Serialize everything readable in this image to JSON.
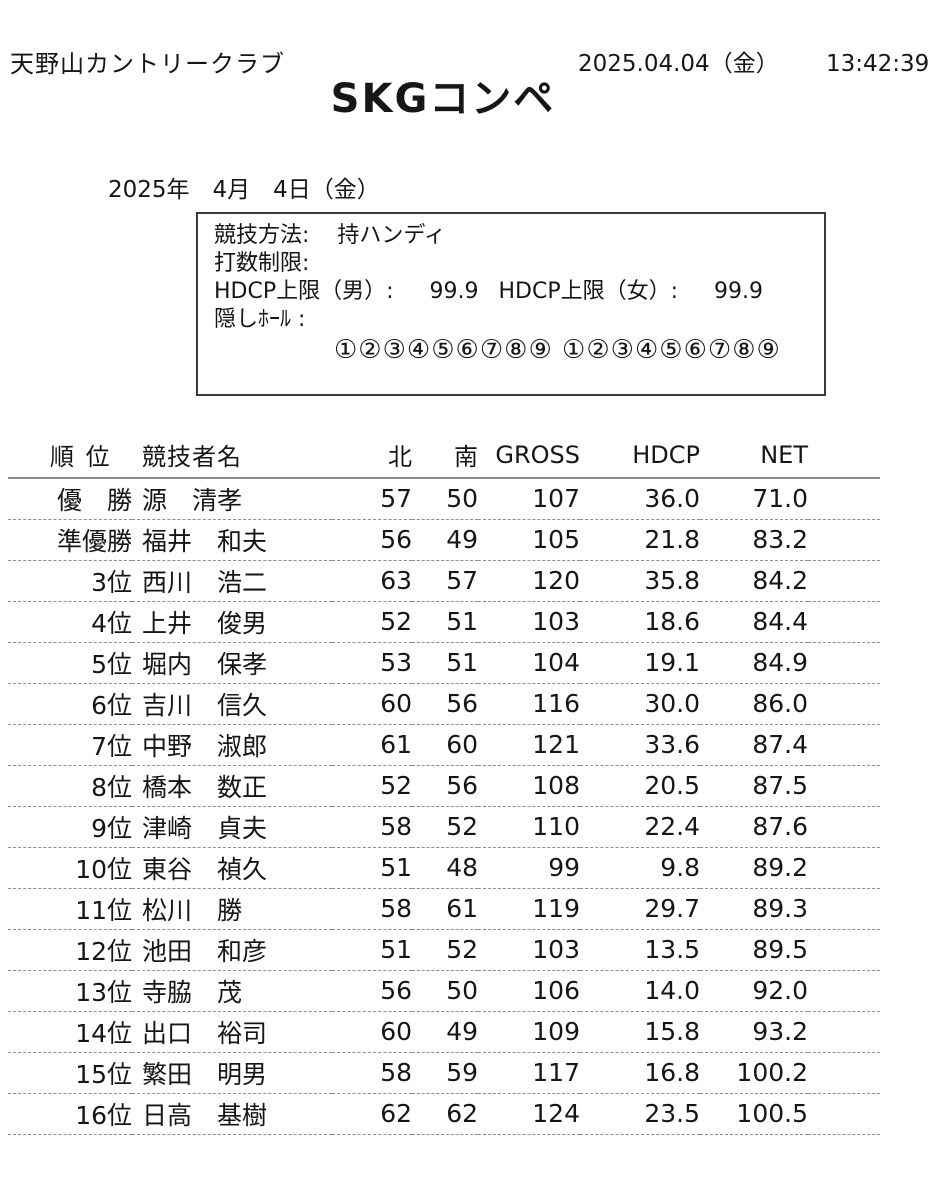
{
  "header": {
    "club_name": "天野山カントリークラブ",
    "print_date": "2025.04.04（金）",
    "print_time": "13:42:39",
    "title": "SKGコンペ",
    "event_date": "2025年　4月　4日（金）"
  },
  "info_box": {
    "method_label": "競技方法:",
    "method_value": "持ハンディ",
    "stroke_limit_label": "打数制限:",
    "hdcp_limit_men_label": "HDCP上限（男）:",
    "hdcp_limit_men_value": "99.9",
    "hdcp_limit_women_label": "HDCP上限（女）:",
    "hdcp_limit_women_value": "99.9",
    "hidden_hole_label": "隠しﾎｰﾙ :",
    "hidden_holes": "①②③④⑤⑥⑦⑧⑨ ①②③④⑤⑥⑦⑧⑨"
  },
  "table": {
    "headers": {
      "rank": "順 位",
      "player": "競技者名",
      "north": "北",
      "south": "南",
      "gross": "GROSS",
      "hdcp": "HDCP",
      "net": "NET"
    },
    "rows": [
      {
        "rank": "優　勝",
        "player": "源　清孝",
        "north": "57",
        "south": "50",
        "gross": "107",
        "hdcp": "36.0",
        "net": "71.0"
      },
      {
        "rank": "準優勝",
        "player": "福井　和夫",
        "north": "56",
        "south": "49",
        "gross": "105",
        "hdcp": "21.8",
        "net": "83.2"
      },
      {
        "rank": "3位",
        "player": "西川　浩二",
        "north": "63",
        "south": "57",
        "gross": "120",
        "hdcp": "35.8",
        "net": "84.2"
      },
      {
        "rank": "4位",
        "player": "上井　俊男",
        "north": "52",
        "south": "51",
        "gross": "103",
        "hdcp": "18.6",
        "net": "84.4"
      },
      {
        "rank": "5位",
        "player": "堀内　保孝",
        "north": "53",
        "south": "51",
        "gross": "104",
        "hdcp": "19.1",
        "net": "84.9"
      },
      {
        "rank": "6位",
        "player": "吉川　信久",
        "north": "60",
        "south": "56",
        "gross": "116",
        "hdcp": "30.0",
        "net": "86.0"
      },
      {
        "rank": "7位",
        "player": "中野　淑郎",
        "north": "61",
        "south": "60",
        "gross": "121",
        "hdcp": "33.6",
        "net": "87.4"
      },
      {
        "rank": "8位",
        "player": "橋本　数正",
        "north": "52",
        "south": "56",
        "gross": "108",
        "hdcp": "20.5",
        "net": "87.5"
      },
      {
        "rank": "9位",
        "player": "津崎　貞夫",
        "north": "58",
        "south": "52",
        "gross": "110",
        "hdcp": "22.4",
        "net": "87.6"
      },
      {
        "rank": "10位",
        "player": "東谷　禎久",
        "north": "51",
        "south": "48",
        "gross": "99",
        "hdcp": "9.8",
        "net": "89.2"
      },
      {
        "rank": "11位",
        "player": "松川　勝",
        "north": "58",
        "south": "61",
        "gross": "119",
        "hdcp": "29.7",
        "net": "89.3"
      },
      {
        "rank": "12位",
        "player": "池田　和彦",
        "north": "51",
        "south": "52",
        "gross": "103",
        "hdcp": "13.5",
        "net": "89.5"
      },
      {
        "rank": "13位",
        "player": "寺脇　茂",
        "north": "56",
        "south": "50",
        "gross": "106",
        "hdcp": "14.0",
        "net": "92.0"
      },
      {
        "rank": "14位",
        "player": "出口　裕司",
        "north": "60",
        "south": "49",
        "gross": "109",
        "hdcp": "15.8",
        "net": "93.2"
      },
      {
        "rank": "15位",
        "player": "繁田　明男",
        "north": "58",
        "south": "59",
        "gross": "117",
        "hdcp": "16.8",
        "net": "100.2"
      },
      {
        "rank": "16位",
        "player": "日高　基樹",
        "north": "62",
        "south": "62",
        "gross": "124",
        "hdcp": "23.5",
        "net": "100.5"
      }
    ]
  }
}
